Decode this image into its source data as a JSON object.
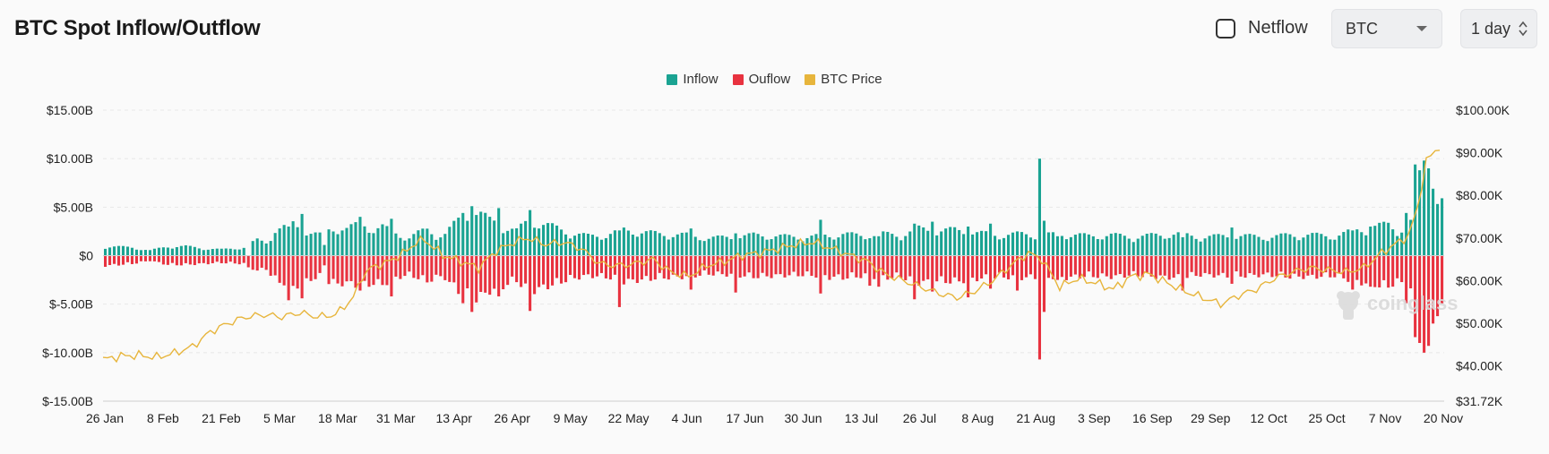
{
  "header": {
    "title": "BTC Spot Inflow/Outflow"
  },
  "controls": {
    "netflow_label": "Netflow",
    "netflow_checked": false,
    "asset_select": "BTC",
    "interval_select": "1 day"
  },
  "watermark": "coinglass",
  "colors": {
    "inflow": "#1aa392",
    "outflow": "#e8323f",
    "price": "#e7b53c"
  },
  "chart_data": {
    "type": "bar+line",
    "title": "BTC Spot Inflow/Outflow",
    "legend": [
      "Inflow",
      "Ouflow",
      "BTC Price"
    ],
    "legend_position": "top-center",
    "left_axis": {
      "min": -15,
      "max": 15,
      "ticks": [
        "$15.00B",
        "$10.00B",
        "$5.00B",
        "$0",
        "$-5.00B",
        "$-10.00B",
        "$-15.00B"
      ],
      "tick_values": [
        15,
        10,
        5,
        0,
        -5,
        -10,
        -15
      ]
    },
    "right_axis": {
      "min": 31.72,
      "max": 100,
      "ticks": [
        "$100.00K",
        "$90.00K",
        "$80.00K",
        "$70.00K",
        "$60.00K",
        "$50.00K",
        "$40.00K",
        "$31.72K"
      ],
      "tick_values": [
        100,
        90,
        80,
        70,
        60,
        50,
        40,
        31.72
      ]
    },
    "x_ticks": [
      "26 Jan",
      "8 Feb",
      "21 Feb",
      "5 Mar",
      "18 Mar",
      "31 Mar",
      "13 Apr",
      "26 Apr",
      "9 May",
      "22 May",
      "4 Jun",
      "17 Jun",
      "30 Jun",
      "13 Jul",
      "26 Jul",
      "8 Aug",
      "21 Aug",
      "3 Sep",
      "16 Sep",
      "29 Sep",
      "12 Oct",
      "25 Oct",
      "7 Nov",
      "20 Nov"
    ],
    "days": 300,
    "inflow_keys": [
      [
        0,
        0.9
      ],
      [
        6,
        0.8
      ],
      [
        10,
        0.5
      ],
      [
        14,
        0.9
      ],
      [
        18,
        0.9
      ],
      [
        22,
        0.7
      ],
      [
        26,
        0.6
      ],
      [
        31,
        0.8
      ],
      [
        34,
        1.5
      ],
      [
        36,
        1.3
      ],
      [
        38,
        2.5
      ],
      [
        40,
        2.7
      ],
      [
        42,
        3.1
      ],
      [
        44,
        2.6
      ],
      [
        46,
        2.2
      ],
      [
        48,
        2.0
      ],
      [
        50,
        2.5
      ],
      [
        52,
        2.8
      ],
      [
        54,
        2.6
      ],
      [
        56,
        2.9
      ],
      [
        58,
        3.0
      ],
      [
        60,
        2.6
      ],
      [
        62,
        2.8
      ],
      [
        64,
        2.3
      ],
      [
        66,
        2.0
      ],
      [
        68,
        1.8
      ],
      [
        70,
        2.2
      ],
      [
        72,
        2.5
      ],
      [
        74,
        2.0
      ],
      [
        76,
        2.1
      ],
      [
        78,
        3.0
      ],
      [
        80,
        3.8
      ],
      [
        82,
        4.3
      ],
      [
        84,
        4.0
      ],
      [
        86,
        3.4
      ],
      [
        88,
        3.2
      ],
      [
        90,
        2.7
      ],
      [
        92,
        2.4
      ],
      [
        95,
        3.5
      ],
      [
        97,
        3.2
      ],
      [
        100,
        2.8
      ],
      [
        104,
        2.2
      ],
      [
        108,
        1.9
      ],
      [
        112,
        2.0
      ],
      [
        116,
        2.5
      ],
      [
        120,
        2.3
      ],
      [
        124,
        2.1
      ],
      [
        130,
        2.0
      ],
      [
        135,
        1.7
      ],
      [
        140,
        1.8
      ],
      [
        145,
        2.0
      ],
      [
        150,
        1.9
      ],
      [
        155,
        1.8
      ],
      [
        160,
        1.9
      ],
      [
        165,
        2.1
      ],
      [
        170,
        1.9
      ],
      [
        174,
        2.1
      ],
      [
        178,
        2.0
      ],
      [
        182,
        2.6
      ],
      [
        186,
        2.4
      ],
      [
        190,
        2.5
      ],
      [
        195,
        2.2
      ],
      [
        200,
        2.0
      ],
      [
        205,
        2.1
      ],
      [
        210,
        2.0
      ],
      [
        215,
        2.1
      ],
      [
        220,
        1.9
      ],
      [
        225,
        2.0
      ],
      [
        230,
        1.8
      ],
      [
        235,
        2.0
      ],
      [
        240,
        2.1
      ],
      [
        245,
        1.8
      ],
      [
        250,
        1.9
      ],
      [
        255,
        1.9
      ],
      [
        260,
        1.8
      ],
      [
        265,
        2.0
      ],
      [
        270,
        2.0
      ],
      [
        275,
        1.9
      ],
      [
        280,
        2.5
      ],
      [
        284,
        2.8
      ],
      [
        287,
        3.0
      ],
      [
        289,
        2.4
      ],
      [
        292,
        3.2
      ],
      [
        294,
        4.5
      ],
      [
        296,
        5.0
      ],
      [
        298,
        5.4
      ],
      [
        299,
        5.3
      ]
    ],
    "outflow_keys": [
      [
        0,
        -1.0
      ],
      [
        6,
        -0.8
      ],
      [
        10,
        -0.5
      ],
      [
        14,
        -0.9
      ],
      [
        18,
        -0.9
      ],
      [
        22,
        -0.8
      ],
      [
        26,
        -0.7
      ],
      [
        31,
        -0.8
      ],
      [
        34,
        -1.5
      ],
      [
        36,
        -1.3
      ],
      [
        38,
        -2.5
      ],
      [
        40,
        -2.7
      ],
      [
        42,
        -3.1
      ],
      [
        44,
        -2.8
      ],
      [
        46,
        -2.3
      ],
      [
        48,
        -2.2
      ],
      [
        50,
        -2.6
      ],
      [
        52,
        -2.8
      ],
      [
        54,
        -2.7
      ],
      [
        56,
        -2.9
      ],
      [
        58,
        -3.1
      ],
      [
        60,
        -2.7
      ],
      [
        62,
        -2.9
      ],
      [
        64,
        -2.4
      ],
      [
        66,
        -2.1
      ],
      [
        68,
        -1.9
      ],
      [
        70,
        -2.2
      ],
      [
        72,
        -2.6
      ],
      [
        74,
        -2.1
      ],
      [
        76,
        -2.2
      ],
      [
        78,
        -3.1
      ],
      [
        80,
        -3.9
      ],
      [
        82,
        -4.4
      ],
      [
        84,
        -4.1
      ],
      [
        86,
        -3.5
      ],
      [
        88,
        -3.3
      ],
      [
        90,
        -2.8
      ],
      [
        92,
        -2.5
      ],
      [
        95,
        -3.6
      ],
      [
        97,
        -3.3
      ],
      [
        100,
        -2.9
      ],
      [
        104,
        -2.3
      ],
      [
        108,
        -2.0
      ],
      [
        112,
        -2.1
      ],
      [
        116,
        -2.6
      ],
      [
        120,
        -2.4
      ],
      [
        124,
        -2.2
      ],
      [
        130,
        -2.1
      ],
      [
        135,
        -1.8
      ],
      [
        140,
        -1.9
      ],
      [
        145,
        -2.1
      ],
      [
        150,
        -2.0
      ],
      [
        155,
        -1.9
      ],
      [
        160,
        -2.0
      ],
      [
        165,
        -2.2
      ],
      [
        170,
        -2.0
      ],
      [
        174,
        -2.2
      ],
      [
        178,
        -2.1
      ],
      [
        182,
        -2.7
      ],
      [
        186,
        -2.5
      ],
      [
        190,
        -2.6
      ],
      [
        195,
        -2.3
      ],
      [
        200,
        -2.1
      ],
      [
        205,
        -2.2
      ],
      [
        210,
        -2.1
      ],
      [
        215,
        -2.2
      ],
      [
        220,
        -2.0
      ],
      [
        225,
        -2.1
      ],
      [
        230,
        -1.9
      ],
      [
        235,
        -2.1
      ],
      [
        240,
        -2.2
      ],
      [
        245,
        -1.9
      ],
      [
        250,
        -2.0
      ],
      [
        255,
        -2.0
      ],
      [
        260,
        -1.9
      ],
      [
        265,
        -2.1
      ],
      [
        270,
        -2.1
      ],
      [
        275,
        -2.0
      ],
      [
        280,
        -2.6
      ],
      [
        284,
        -2.9
      ],
      [
        287,
        -3.1
      ],
      [
        289,
        -2.5
      ],
      [
        292,
        -3.3
      ],
      [
        294,
        -4.6
      ],
      [
        296,
        -5.1
      ],
      [
        298,
        -5.5
      ],
      [
        299,
        -5.4
      ]
    ],
    "spikes": [
      [
        32,
        0,
        -1.2
      ],
      [
        41,
        3.0,
        -4.6
      ],
      [
        44,
        4.3,
        -4.4
      ],
      [
        49,
        1.1,
        -1.0
      ],
      [
        57,
        4.0,
        -3.6
      ],
      [
        64,
        3.8,
        -4.2
      ],
      [
        80,
        4.4,
        -4.9
      ],
      [
        82,
        5.1,
        -5.8
      ],
      [
        88,
        4.9,
        -4.2
      ],
      [
        95,
        4.7,
        -5.7
      ],
      [
        115,
        2.6,
        -5.3
      ],
      [
        131,
        2.8,
        -3.5
      ],
      [
        141,
        2.3,
        -3.8
      ],
      [
        160,
        3.7,
        -3.9
      ],
      [
        162,
        1.9,
        -2.5
      ],
      [
        171,
        1.8,
        -3.1
      ],
      [
        173,
        2.0,
        -3.2
      ],
      [
        181,
        3.3,
        -4.5
      ],
      [
        185,
        3.5,
        -3.7
      ],
      [
        193,
        3.0,
        -4.3
      ],
      [
        198,
        3.3,
        -3.4
      ],
      [
        204,
        2.5,
        -3.6
      ],
      [
        209,
        10.0,
        -10.7
      ],
      [
        210,
        3.6,
        -5.8
      ],
      [
        213,
        2.0,
        -2.5
      ],
      [
        241,
        1.9,
        -3.6
      ],
      [
        252,
        2.9,
        -2.9
      ],
      [
        279,
        2.6,
        -3.5
      ],
      [
        283,
        3.0,
        -3.2
      ],
      [
        291,
        4.4,
        -4.9
      ],
      [
        293,
        9.4,
        -8.4
      ],
      [
        294,
        8.8,
        -9.0
      ],
      [
        295,
        9.8,
        -10.0
      ],
      [
        296,
        9.0,
        -9.3
      ],
      [
        297,
        6.9,
        -7.0
      ],
      [
        300,
        5.4,
        -5.4
      ]
    ],
    "price_keys": [
      [
        0,
        41.5
      ],
      [
        4,
        42.3
      ],
      [
        8,
        42.5
      ],
      [
        12,
        42.0
      ],
      [
        16,
        43.0
      ],
      [
        20,
        44.5
      ],
      [
        24,
        48.0
      ],
      [
        28,
        50.0
      ],
      [
        32,
        51.5
      ],
      [
        36,
        52.0
      ],
      [
        40,
        51.5
      ],
      [
        44,
        52.5
      ],
      [
        48,
        51.5
      ],
      [
        52,
        52.0
      ],
      [
        56,
        56.0
      ],
      [
        58,
        61.0
      ],
      [
        60,
        63.0
      ],
      [
        64,
        64.5
      ],
      [
        68,
        67.0
      ],
      [
        70,
        69.0
      ],
      [
        72,
        69.5
      ],
      [
        76,
        66.0
      ],
      [
        80,
        64.5
      ],
      [
        84,
        63.0
      ],
      [
        88,
        67.0
      ],
      [
        92,
        69.0
      ],
      [
        95,
        70.0
      ],
      [
        99,
        68.5
      ],
      [
        103,
        69.0
      ],
      [
        107,
        67.5
      ],
      [
        111,
        64.0
      ],
      [
        115,
        63.5
      ],
      [
        119,
        64.0
      ],
      [
        123,
        65.0
      ],
      [
        127,
        62.0
      ],
      [
        131,
        61.0
      ],
      [
        135,
        63.5
      ],
      [
        139,
        64.5
      ],
      [
        143,
        66.0
      ],
      [
        147,
        66.5
      ],
      [
        151,
        67.5
      ],
      [
        155,
        68.5
      ],
      [
        159,
        69.0
      ],
      [
        163,
        67.5
      ],
      [
        167,
        66.0
      ],
      [
        171,
        64.5
      ],
      [
        175,
        61.5
      ],
      [
        179,
        60.0
      ],
      [
        183,
        58.5
      ],
      [
        187,
        57.0
      ],
      [
        191,
        56.0
      ],
      [
        195,
        57.5
      ],
      [
        199,
        60.0
      ],
      [
        203,
        63.5
      ],
      [
        207,
        66.5
      ],
      [
        210,
        65.0
      ],
      [
        214,
        58.5
      ],
      [
        218,
        60.5
      ],
      [
        222,
        59.5
      ],
      [
        226,
        58.0
      ],
      [
        230,
        61.0
      ],
      [
        234,
        61.5
      ],
      [
        238,
        59.5
      ],
      [
        242,
        57.5
      ],
      [
        246,
        56.0
      ],
      [
        250,
        54.5
      ],
      [
        254,
        56.5
      ],
      [
        258,
        58.0
      ],
      [
        262,
        60.5
      ],
      [
        266,
        62.0
      ],
      [
        270,
        63.0
      ],
      [
        274,
        62.5
      ],
      [
        278,
        62.0
      ],
      [
        282,
        63.0
      ],
      [
        286,
        66.5
      ],
      [
        289,
        68.5
      ],
      [
        292,
        70.5
      ],
      [
        294,
        77.0
      ],
      [
        296,
        88.0
      ],
      [
        298,
        90.5
      ],
      [
        299,
        91.5
      ]
    ]
  }
}
